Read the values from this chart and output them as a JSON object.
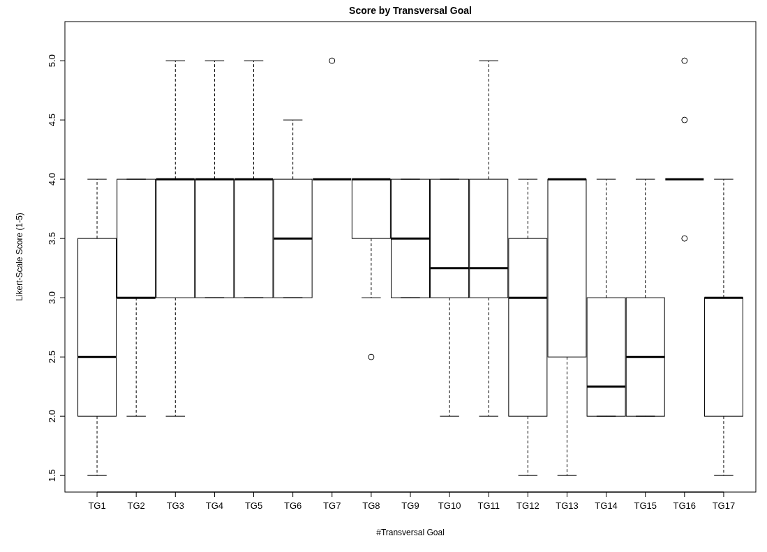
{
  "chart_data": {
    "type": "box",
    "title": "Score by Transversal Goal",
    "xlabel": "#Transversal Goal",
    "ylabel": "Likert-Scale Score (1-5)",
    "categories": [
      "TG1",
      "TG2",
      "TG3",
      "TG4",
      "TG5",
      "TG6",
      "TG7",
      "TG8",
      "TG9",
      "TG10",
      "TG11",
      "TG12",
      "TG13",
      "TG14",
      "TG15",
      "TG16",
      "TG17"
    ],
    "boxes": [
      {
        "low": 1.5,
        "q1": 2,
        "median": 2.5,
        "q3": 3.5,
        "high": 4
      },
      {
        "low": 2,
        "q1": 3,
        "median": 3,
        "q3": 4,
        "high": 4
      },
      {
        "low": 2,
        "q1": 3,
        "median": 4,
        "q3": 4,
        "high": 5
      },
      {
        "low": 3,
        "q1": 3,
        "median": 4,
        "q3": 4,
        "high": 5
      },
      {
        "low": 3,
        "q1": 3,
        "median": 4,
        "q3": 4,
        "high": 5
      },
      {
        "low": 3,
        "q1": 3,
        "median": 3.5,
        "q3": 4,
        "high": 4.5
      },
      {
        "low": 4,
        "q1": 4,
        "median": 4,
        "q3": 4,
        "high": 4,
        "outliers": [
          5
        ]
      },
      {
        "low": 3,
        "q1": 3.5,
        "median": 4,
        "q3": 4,
        "high": 4,
        "outliers": [
          2.5
        ]
      },
      {
        "low": 3,
        "q1": 3,
        "median": 3.5,
        "q3": 4,
        "high": 4
      },
      {
        "low": 2,
        "q1": 3,
        "median": 3.25,
        "q3": 4,
        "high": 4
      },
      {
        "low": 2,
        "q1": 3,
        "median": 3.25,
        "q3": 4,
        "high": 5
      },
      {
        "low": 1.5,
        "q1": 2,
        "median": 3,
        "q3": 3.5,
        "high": 4
      },
      {
        "low": 1.5,
        "q1": 2.5,
        "median": 4,
        "q3": 4,
        "high": 4
      },
      {
        "low": 2,
        "q1": 2,
        "median": 2.25,
        "q3": 3,
        "high": 4
      },
      {
        "low": 2,
        "q1": 2,
        "median": 2.5,
        "q3": 3,
        "high": 4
      },
      {
        "low": 4,
        "q1": 4,
        "median": 4,
        "q3": 4,
        "high": 4,
        "outliers": [
          3.5,
          4.5,
          5
        ]
      },
      {
        "low": 1.5,
        "q1": 2,
        "median": 3,
        "q3": 3,
        "high": 4
      }
    ],
    "ylim": [
      1.36,
      5.33
    ],
    "yticks": [
      {
        "value": 1.5,
        "label": "1.5"
      },
      {
        "value": 2,
        "label": "2.0"
      },
      {
        "value": 2.5,
        "label": "2.5"
      },
      {
        "value": 3,
        "label": "3.0"
      },
      {
        "value": 3.5,
        "label": "3.5"
      },
      {
        "value": 4,
        "label": "4.0"
      },
      {
        "value": 4.5,
        "label": "4.5"
      },
      {
        "value": 5,
        "label": "5.0"
      }
    ]
  }
}
